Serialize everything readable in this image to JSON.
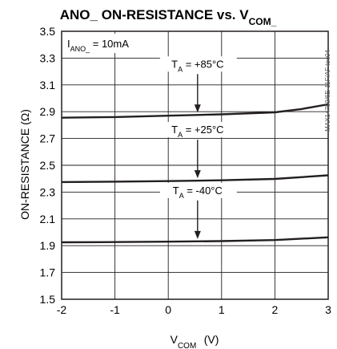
{
  "chart_data": {
    "type": "line",
    "title": {
      "main": "ANO_ ON-RESISTANCE vs. V",
      "sub": "COM_"
    },
    "xlabel": {
      "main": "V",
      "sub": "COM_",
      "suffix": " (V)"
    },
    "ylabel": "ON-RESISTANCE (Ω)",
    "condition": {
      "main": "I",
      "sub": "ANO_",
      "suffix": " = 10mA"
    },
    "side_text": "MAX14759/6E-11F/AF toc04",
    "xlim": [
      -2,
      3
    ],
    "ylim": [
      1.5,
      3.5
    ],
    "xticks": [
      "-2",
      "-1",
      "0",
      "1",
      "2",
      "3"
    ],
    "yticks": [
      "1.5",
      "1.7",
      "1.9",
      "2.1",
      "2.3",
      "2.5",
      "2.7",
      "2.9",
      "3.1",
      "3.3",
      "3.5"
    ],
    "grid": true,
    "series": [
      {
        "name": {
          "main": "T",
          "sub": "A",
          "suffix": " = +85°C"
        },
        "x": [
          -2,
          -1,
          0,
          1,
          2,
          2.5,
          3
        ],
        "y": [
          2.855,
          2.86,
          2.87,
          2.88,
          2.895,
          2.92,
          2.955
        ]
      },
      {
        "name": {
          "main": "T",
          "sub": "A",
          "suffix": " = +25°C"
        },
        "x": [
          -2,
          -1,
          0,
          1,
          2,
          3
        ],
        "y": [
          2.375,
          2.378,
          2.382,
          2.388,
          2.398,
          2.425
        ]
      },
      {
        "name": {
          "main": "T",
          "sub": "A",
          "suffix": " = -40°C"
        },
        "x": [
          -2,
          -1,
          0,
          1,
          2,
          3
        ],
        "y": [
          1.925,
          1.927,
          1.93,
          1.934,
          1.942,
          1.962
        ]
      }
    ]
  }
}
